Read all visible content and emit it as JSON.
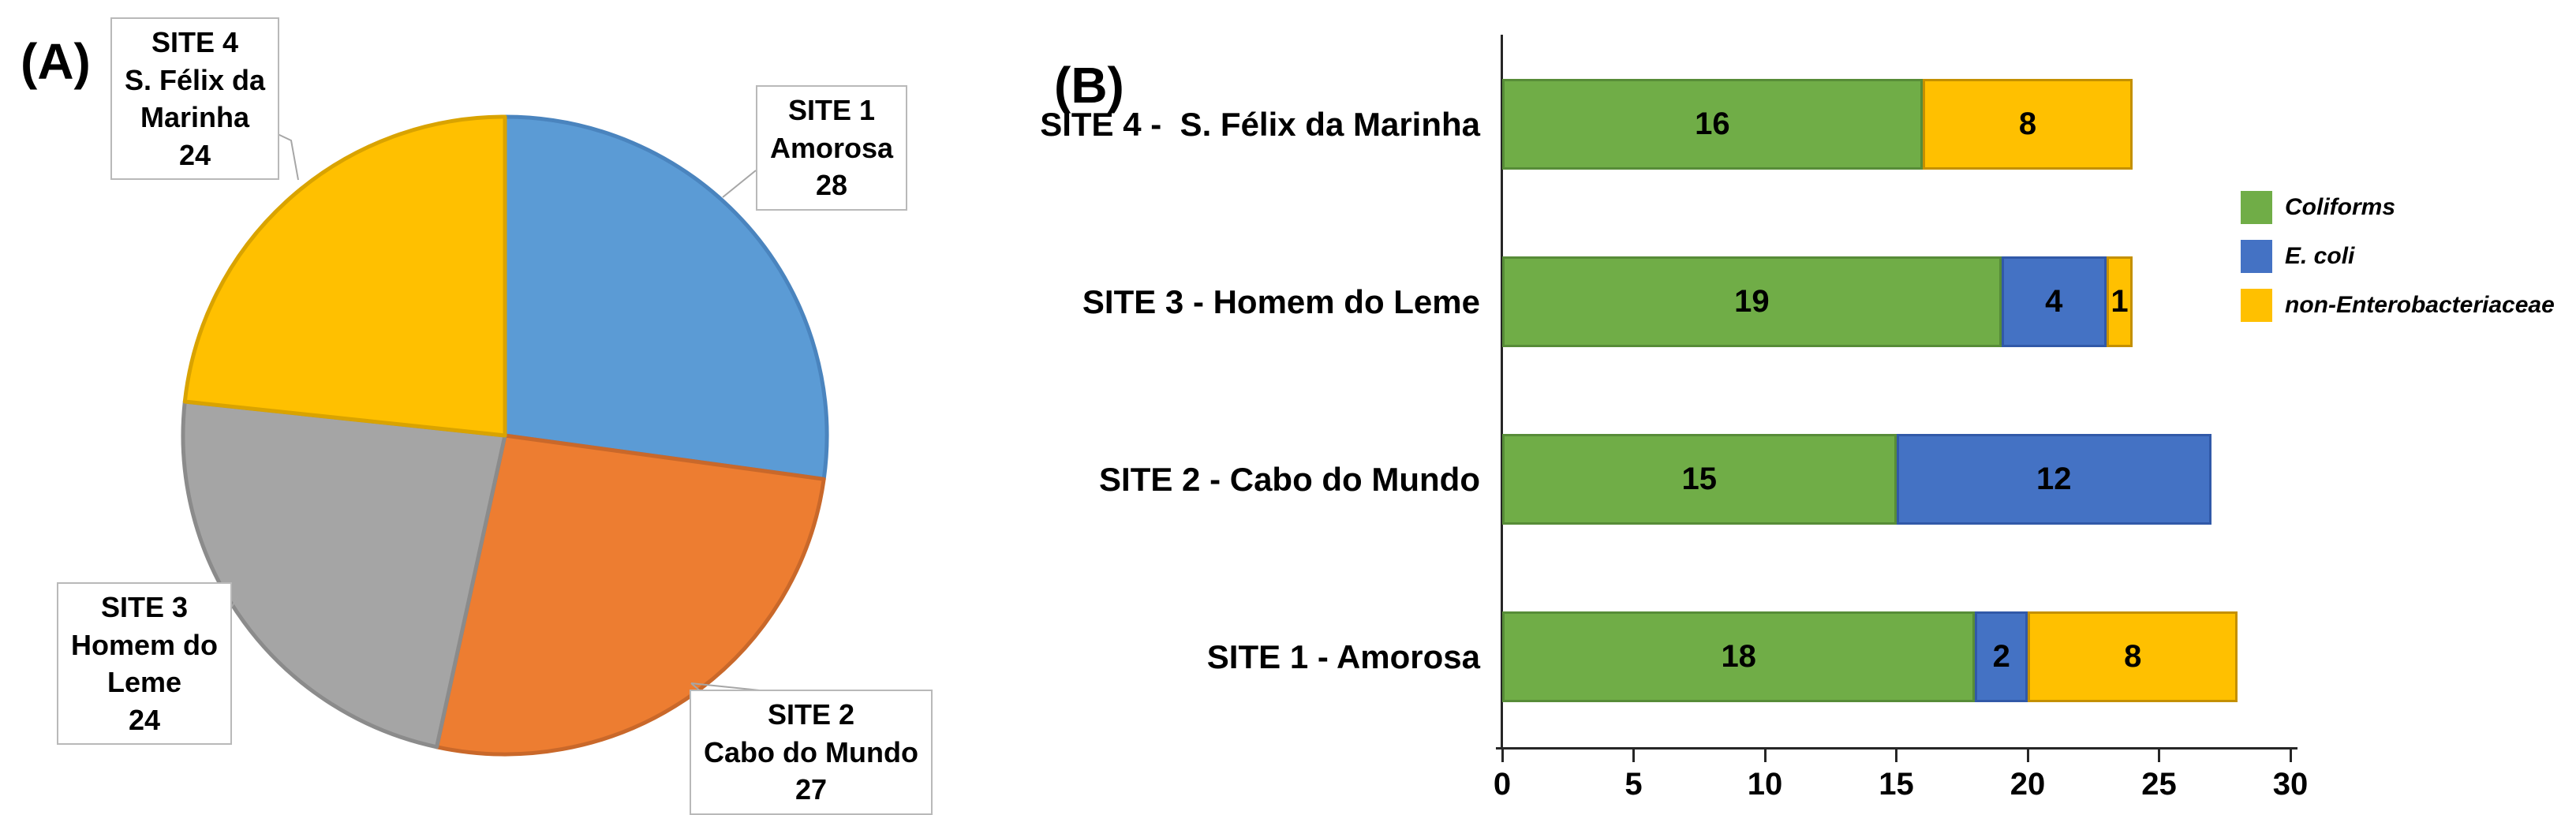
{
  "panels": {
    "a_label": "(A)",
    "b_label": "(B)"
  },
  "colors": {
    "pie_blue": "#5B9BD5",
    "pie_orange": "#ED7D31",
    "pie_gray": "#A5A5A5",
    "pie_yellow": "#FFC000",
    "bar_green": "#70AD47",
    "bar_blue": "#4472C4",
    "bar_yellow": "#FFC000",
    "axis": "#262626",
    "callout_border": "#B9B9B9",
    "leader_line": "#A6A6A6"
  },
  "chart_data": [
    {
      "type": "pie",
      "panel": "(A)",
      "title": "",
      "start": "top",
      "direction": "clockwise",
      "slices": [
        {
          "site": "SITE 1",
          "name": "Amorosa",
          "value": 28,
          "color": "#5B9BD5",
          "border_color": "#4A84BE"
        },
        {
          "site": "SITE 2",
          "name": "Cabo do Mundo",
          "value": 27,
          "color": "#ED7D31",
          "border_color": "#C9682A"
        },
        {
          "site": "SITE 3",
          "name": "Homem do Leme",
          "value": 24,
          "color": "#A5A5A5",
          "border_color": "#8B8B8B"
        },
        {
          "site": "SITE 4",
          "name": "S. Félix da Marinha",
          "value": 24,
          "color": "#FFC000",
          "border_color": "#D9A300"
        }
      ],
      "callouts": [
        {
          "target": "SITE 4",
          "lines": [
            "SITE 4",
            "S. Félix da",
            "Marinha",
            "24"
          ]
        },
        {
          "target": "SITE 1",
          "lines": [
            "SITE 1",
            "Amorosa",
            "28"
          ]
        },
        {
          "target": "SITE 3",
          "lines": [
            "SITE 3",
            "Homem do",
            "Leme",
            "24"
          ]
        },
        {
          "target": "SITE 2",
          "lines": [
            "SITE 2",
            "Cabo do Mundo",
            "27"
          ]
        }
      ]
    },
    {
      "type": "bar",
      "panel": "(B)",
      "title": "",
      "orientation": "horizontal",
      "stacked": true,
      "xlim": [
        0,
        30
      ],
      "xticks": [
        0,
        5,
        10,
        15,
        20,
        25,
        30
      ],
      "grid": false,
      "legend_position": "right",
      "series": [
        {
          "name": "Coliforms",
          "color": "#70AD47",
          "border_color": "#578C38"
        },
        {
          "name": "E. coli",
          "color": "#4472C4",
          "border_color": "#3159A8"
        },
        {
          "name": "non-Enterobacteriaceae",
          "color": "#FFC000",
          "border_color": "#C49000"
        }
      ],
      "rows": [
        {
          "category": "SITE 4 -  S. Félix da Marinha",
          "segments": [
            {
              "series": "Coliforms",
              "value": 16
            },
            {
              "series": "non-Enterobacteriaceae",
              "value": 8
            }
          ]
        },
        {
          "category": "SITE 3 - Homem do Leme",
          "segments": [
            {
              "series": "Coliforms",
              "value": 19
            },
            {
              "series": "E. coli",
              "value": 4
            },
            {
              "series": "non-Enterobacteriaceae",
              "value": 1
            }
          ]
        },
        {
          "category": "SITE 2 - Cabo do Mundo",
          "segments": [
            {
              "series": "Coliforms",
              "value": 15
            },
            {
              "series": "E. coli",
              "value": 12
            }
          ]
        },
        {
          "category": "SITE 1 - Amorosa",
          "segments": [
            {
              "series": "Coliforms",
              "value": 18
            },
            {
              "series": "E. coli",
              "value": 2
            },
            {
              "series": "non-Enterobacteriaceae",
              "value": 8
            }
          ]
        }
      ]
    }
  ]
}
